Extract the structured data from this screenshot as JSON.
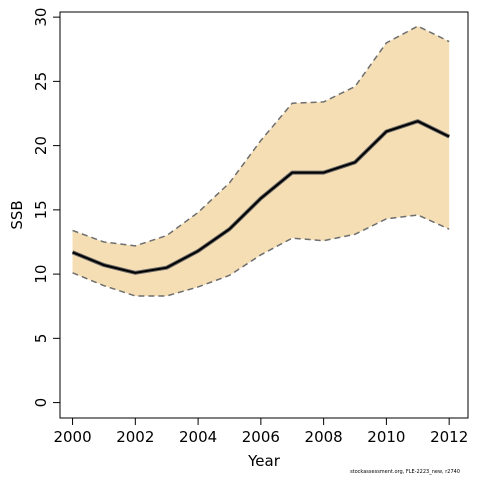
{
  "chart_data": {
    "type": "line",
    "xlabel": "Year",
    "ylabel": "SSB",
    "xlim": [
      1999.6,
      2012.6
    ],
    "ylim": [
      -1.2,
      30.4
    ],
    "x_ticks": [
      2000,
      2002,
      2004,
      2006,
      2008,
      2010,
      2012
    ],
    "y_ticks": [
      0,
      5,
      10,
      15,
      20,
      25,
      30
    ],
    "grid": false,
    "legend": "none",
    "x": [
      2000,
      2001,
      2002,
      2003,
      2004,
      2005,
      2006,
      2007,
      2008,
      2009,
      2010,
      2011,
      2012
    ],
    "series": [
      {
        "role": "estimate",
        "values": [
          11.7,
          10.7,
          10.1,
          10.5,
          11.8,
          13.5,
          15.9,
          17.9,
          17.9,
          18.7,
          21.1,
          21.9,
          20.7
        ],
        "color": "#000000",
        "shadow_color": "#666666"
      },
      {
        "role": "upper",
        "values": [
          13.4,
          12.5,
          12.2,
          13.0,
          14.8,
          17.1,
          20.4,
          23.3,
          23.4,
          24.6,
          28.0,
          29.3,
          28.1
        ],
        "color": "#6e6e6e",
        "dash": true
      },
      {
        "role": "lower",
        "values": [
          10.1,
          9.1,
          8.3,
          8.3,
          9.0,
          9.9,
          11.5,
          12.8,
          12.6,
          13.1,
          14.3,
          14.6,
          13.5
        ],
        "color": "#6e6e6e",
        "dash": true
      }
    ],
    "band_color": "#f5deb3",
    "footnote": "stockassessment.org, FLE-2223_new, r2740"
  }
}
